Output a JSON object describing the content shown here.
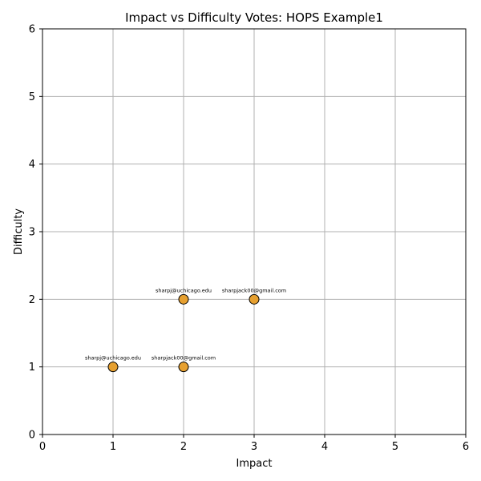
{
  "chart_data": {
    "type": "scatter",
    "title": "Impact vs Difficulty Votes: HOPS Example1",
    "xlabel": "Impact",
    "ylabel": "Difficulty",
    "xlim": [
      0,
      6
    ],
    "ylim": [
      0,
      6
    ],
    "xticks": [
      "0",
      "1",
      "2",
      "3",
      "4",
      "5",
      "6"
    ],
    "yticks": [
      "0",
      "1",
      "2",
      "3",
      "4",
      "5",
      "6"
    ],
    "grid": true,
    "points": [
      {
        "x": 1,
        "y": 1,
        "label": "sharpj@uchicago.edu"
      },
      {
        "x": 2,
        "y": 1,
        "label": "sharpjack00@gmail.com"
      },
      {
        "x": 2,
        "y": 2,
        "label": "sharpj@uchicago.edu"
      },
      {
        "x": 3,
        "y": 2,
        "label": "sharpjack00@gmail.com"
      }
    ],
    "marker_color": "#e6a030",
    "marker_edge_color": "#000000",
    "grid_color": "#b0b0b0"
  }
}
